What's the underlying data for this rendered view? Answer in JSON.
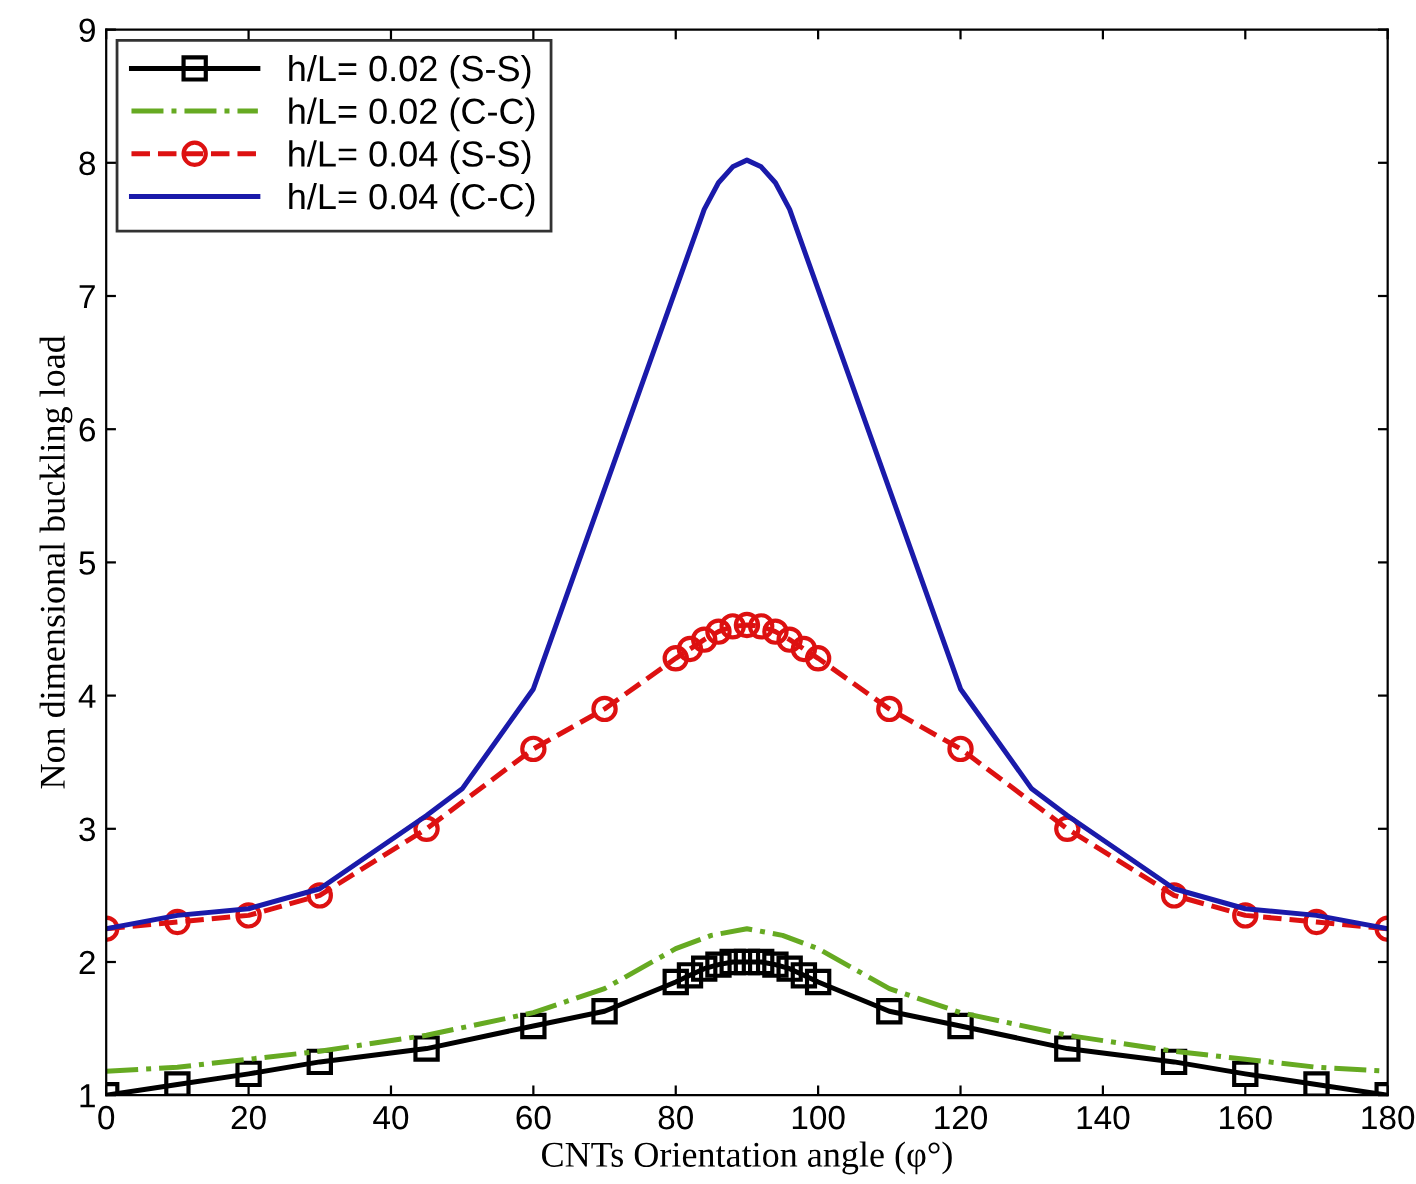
{
  "chart_data": {
    "type": "line",
    "xlabel": "CNTs Orientation angle (φ°)",
    "ylabel": "Non dimensional buckling load",
    "xlim": [
      0,
      180
    ],
    "xticks": [
      0,
      20,
      40,
      60,
      80,
      100,
      120,
      140,
      160,
      180
    ],
    "ylim": [
      1,
      9
    ],
    "yticks": [
      1,
      2,
      3,
      4,
      5,
      6,
      7,
      8,
      9
    ],
    "grid": false,
    "legend": "top left",
    "series": [
      {
        "name": "h/L= 0.02 (S-S)",
        "color": "#000000",
        "marker": "square",
        "line_style": "solid",
        "x": [
          0,
          10,
          20,
          30,
          45,
          60,
          70,
          80,
          82,
          84,
          86,
          88,
          90,
          92,
          94,
          96,
          98,
          100,
          110,
          120,
          135,
          150,
          160,
          170,
          180
        ],
        "values": [
          1.0,
          1.08,
          1.16,
          1.25,
          1.35,
          1.52,
          1.63,
          1.85,
          1.9,
          1.95,
          1.98,
          2.0,
          2.0,
          2.0,
          1.98,
          1.95,
          1.9,
          1.85,
          1.63,
          1.52,
          1.35,
          1.25,
          1.16,
          1.08,
          1.0
        ]
      },
      {
        "name": "h/L= 0.02 (C-C)",
        "color": "#66aa22",
        "marker": "none",
        "line_style": "dashdot",
        "x": [
          0,
          10,
          20,
          30,
          45,
          60,
          70,
          80,
          85,
          90,
          95,
          100,
          110,
          120,
          135,
          150,
          160,
          170,
          180
        ],
        "values": [
          1.18,
          1.21,
          1.27,
          1.33,
          1.45,
          1.62,
          1.8,
          2.1,
          2.2,
          2.25,
          2.2,
          2.1,
          1.8,
          1.62,
          1.45,
          1.33,
          1.27,
          1.21,
          1.18
        ]
      },
      {
        "name": "h/L= 0.04 (S-S)",
        "color": "#dd1111",
        "marker": "circle",
        "line_style": "dashed",
        "x": [
          0,
          10,
          20,
          30,
          45,
          60,
          70,
          80,
          82,
          84,
          86,
          88,
          90,
          92,
          94,
          96,
          98,
          100,
          110,
          120,
          135,
          150,
          160,
          170,
          180
        ],
        "values": [
          2.25,
          2.3,
          2.35,
          2.5,
          3.0,
          3.6,
          3.9,
          4.28,
          4.35,
          4.42,
          4.48,
          4.52,
          4.53,
          4.52,
          4.48,
          4.42,
          4.35,
          4.28,
          3.9,
          3.6,
          3.0,
          2.5,
          2.35,
          2.3,
          2.25
        ]
      },
      {
        "name": "h/L= 0.04 (C-C)",
        "color": "#1a1aaa",
        "marker": "none",
        "line_style": "solid",
        "x": [
          0,
          10,
          20,
          30,
          45,
          50,
          60,
          84,
          86,
          88,
          90,
          92,
          94,
          96,
          120,
          130,
          135,
          150,
          160,
          170,
          180
        ],
        "values": [
          2.25,
          2.35,
          2.4,
          2.55,
          3.1,
          3.3,
          4.05,
          7.65,
          7.85,
          7.97,
          8.02,
          7.97,
          7.85,
          7.65,
          4.05,
          3.3,
          3.1,
          2.55,
          2.4,
          2.35,
          2.25
        ]
      }
    ]
  }
}
